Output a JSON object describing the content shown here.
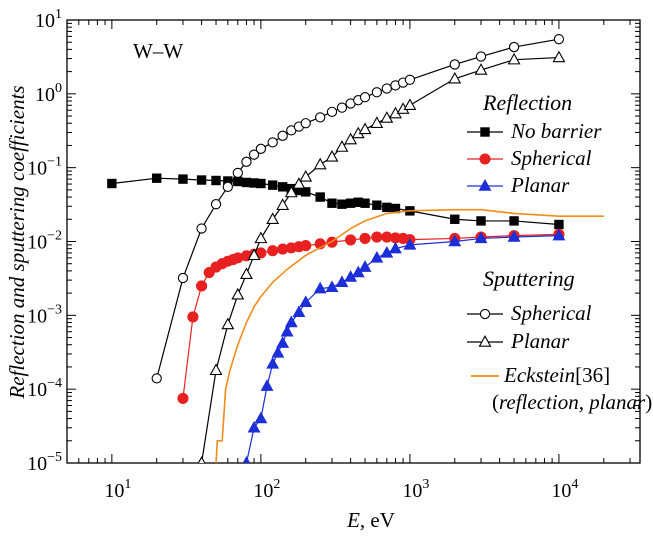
{
  "chart_data": {
    "type": "line",
    "panel_label": "W–W",
    "xlabel": {
      "var": "E",
      "unit": ", eV"
    },
    "ylabel": "Reflection and sputtering coefficients",
    "x_scale": "log",
    "y_scale": "log",
    "xlim": [
      5,
      35000
    ],
    "ylim": [
      1e-05,
      10
    ],
    "x_ticks": [
      {
        "value": 10,
        "base": "10",
        "exp": "1"
      },
      {
        "value": 100,
        "base": "10",
        "exp": "2"
      },
      {
        "value": 1000,
        "base": "10",
        "exp": "3"
      },
      {
        "value": 10000,
        "base": "10",
        "exp": "4"
      }
    ],
    "y_ticks": [
      {
        "value": 10,
        "base": "10",
        "exp": "1"
      },
      {
        "value": 1,
        "base": "10",
        "exp": "0"
      },
      {
        "value": 0.1,
        "base": "10",
        "exp": "−1"
      },
      {
        "value": 0.01,
        "base": "10",
        "exp": "−2"
      },
      {
        "value": 0.001,
        "base": "10",
        "exp": "−3"
      },
      {
        "value": 0.0001,
        "base": "10",
        "exp": "−4"
      },
      {
        "value": 1e-05,
        "base": "10",
        "exp": "−5"
      }
    ],
    "grid": false,
    "legend_groups": [
      {
        "heading": "Reflection"
      },
      {
        "heading": "Sputtering"
      }
    ],
    "series": [
      {
        "name": "No barrier",
        "group": "Reflection",
        "marker": "square",
        "filled": true,
        "color": "#000000",
        "line_color": "#000000",
        "x": [
          10,
          20,
          30,
          40,
          50,
          60,
          70,
          80,
          90,
          100,
          120,
          140,
          160,
          180,
          200,
          250,
          300,
          350,
          400,
          450,
          500,
          600,
          700,
          800,
          1000,
          2000,
          3000,
          5000,
          10000
        ],
        "y": [
          0.061,
          0.072,
          0.07,
          0.068,
          0.067,
          0.066,
          0.065,
          0.063,
          0.062,
          0.061,
          0.058,
          0.055,
          0.052,
          0.049,
          0.047,
          0.04,
          0.033,
          0.032,
          0.033,
          0.034,
          0.033,
          0.031,
          0.029,
          0.028,
          0.026,
          0.02,
          0.019,
          0.019,
          0.017
        ]
      },
      {
        "name": "Spherical",
        "group": "Reflection",
        "marker": "circle",
        "filled": true,
        "color": "#e82020",
        "line_color": "#e82020",
        "x": [
          30,
          35,
          40,
          45,
          50,
          55,
          60,
          65,
          70,
          80,
          90,
          100,
          120,
          140,
          160,
          180,
          200,
          250,
          300,
          400,
          500,
          600,
          700,
          800,
          900,
          1000,
          2000,
          3000,
          5000,
          10000
        ],
        "y": [
          7.5e-05,
          0.00095,
          0.0025,
          0.0038,
          0.0045,
          0.005,
          0.0054,
          0.0057,
          0.006,
          0.0064,
          0.0067,
          0.007,
          0.0075,
          0.0079,
          0.0082,
          0.0085,
          0.0088,
          0.0093,
          0.0098,
          0.0105,
          0.011,
          0.0115,
          0.0115,
          0.0112,
          0.011,
          0.0106,
          0.011,
          0.0115,
          0.012,
          0.0125
        ]
      },
      {
        "name": "Planar",
        "group": "Reflection",
        "marker": "triangle",
        "filled": true,
        "color": "#1c2fd8",
        "line_color": "#1c2fd8",
        "x": [
          80,
          90,
          100,
          110,
          120,
          130,
          140,
          150,
          160,
          180,
          200,
          250,
          300,
          350,
          400,
          450,
          500,
          600,
          700,
          800,
          1000,
          2000,
          3000,
          5000,
          10000
        ],
        "y": [
          1e-05,
          3e-05,
          4e-05,
          0.00011,
          0.00022,
          0.00031,
          0.00042,
          0.0006,
          0.0008,
          0.0011,
          0.0015,
          0.0023,
          0.0024,
          0.0028,
          0.0033,
          0.0038,
          0.0045,
          0.006,
          0.007,
          0.008,
          0.009,
          0.01,
          0.011,
          0.0115,
          0.012
        ]
      },
      {
        "name": "Spherical",
        "group": "Sputtering",
        "marker": "circle",
        "filled": false,
        "color": "#000000",
        "line_color": "#000000",
        "x": [
          20,
          30,
          40,
          50,
          60,
          70,
          80,
          90,
          100,
          120,
          140,
          160,
          180,
          200,
          250,
          300,
          350,
          400,
          450,
          500,
          600,
          700,
          800,
          900,
          1000,
          2000,
          3000,
          5000,
          10000
        ],
        "y": [
          0.00014,
          0.0032,
          0.015,
          0.032,
          0.055,
          0.085,
          0.12,
          0.15,
          0.18,
          0.22,
          0.27,
          0.32,
          0.36,
          0.4,
          0.48,
          0.57,
          0.65,
          0.74,
          0.82,
          0.9,
          1.05,
          1.18,
          1.3,
          1.42,
          1.55,
          2.5,
          3.2,
          4.3,
          5.5
        ]
      },
      {
        "name": "Planar",
        "group": "Sputtering",
        "marker": "triangle",
        "filled": false,
        "color": "#000000",
        "line_color": "#000000",
        "x": [
          40,
          50,
          60,
          70,
          80,
          90,
          100,
          120,
          140,
          160,
          180,
          200,
          250,
          300,
          350,
          400,
          450,
          500,
          600,
          700,
          800,
          900,
          1000,
          2000,
          3000,
          5000,
          10000
        ],
        "y": [
          1e-05,
          0.00018,
          0.00075,
          0.0019,
          0.0036,
          0.0065,
          0.011,
          0.02,
          0.031,
          0.046,
          0.06,
          0.075,
          0.11,
          0.14,
          0.19,
          0.24,
          0.29,
          0.33,
          0.4,
          0.47,
          0.54,
          0.62,
          0.7,
          1.6,
          2.1,
          2.9,
          3.1
        ]
      },
      {
        "name": "Eckstein",
        "ref": "[36]",
        "note": "(reflection, planar)",
        "marker": "none",
        "filled": false,
        "color": "#f08c1c",
        "line_color": "#f08c1c",
        "x": [
          50,
          51,
          55,
          58,
          62,
          70,
          80,
          90,
          100,
          120,
          150,
          200,
          300,
          400,
          500,
          700,
          1000,
          2000,
          3000,
          5000,
          10000,
          20000
        ],
        "y": [
          1e-05,
          2e-05,
          2e-05,
          0.0001,
          0.00018,
          0.0004,
          0.0008,
          0.0013,
          0.0018,
          0.0028,
          0.0042,
          0.0065,
          0.01,
          0.015,
          0.019,
          0.024,
          0.026,
          0.027,
          0.027,
          0.024,
          0.022,
          0.022
        ]
      }
    ]
  }
}
